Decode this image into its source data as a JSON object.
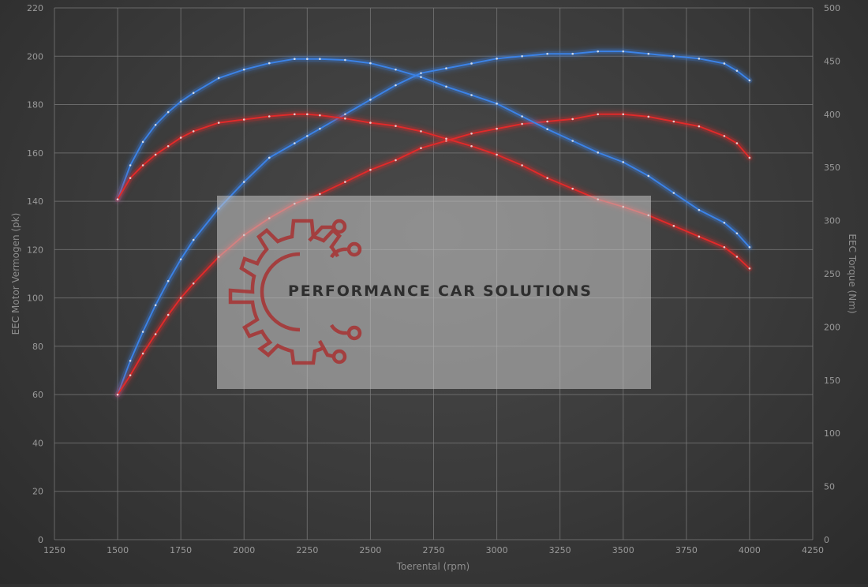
{
  "chart_data": {
    "type": "line",
    "title": "",
    "xlabel": "Toerental (rpm)",
    "ylabel_left": "EEC Motor Vermogen (pk)",
    "ylabel_right": "EEC Torque (Nm)",
    "xlim": [
      1250,
      4250
    ],
    "ylim_left": [
      0,
      220
    ],
    "ylim_right": [
      0,
      500
    ],
    "x_ticks": [
      "1250",
      "1500",
      "1750",
      "2000",
      "2250",
      "2500",
      "2750",
      "3000",
      "3250",
      "3500",
      "3750",
      "4000",
      "4250"
    ],
    "y_left_ticks": [
      "0",
      "20",
      "40",
      "60",
      "80",
      "100",
      "120",
      "140",
      "160",
      "180",
      "200",
      "220"
    ],
    "y_right_ticks": [
      "0",
      "50",
      "100",
      "150",
      "200",
      "250",
      "300",
      "350",
      "400",
      "450",
      "500"
    ],
    "grid": true,
    "series": [
      {
        "color": "#3b82e6",
        "axis": "left",
        "x": [
          1500,
          1550,
          1600,
          1650,
          1700,
          1750,
          1800,
          1900,
          2000,
          2100,
          2200,
          2250,
          2300,
          2400,
          2500,
          2600,
          2700,
          2800,
          2900,
          3000,
          3100,
          3200,
          3300,
          3400,
          3500,
          3600,
          3700,
          3800,
          3900,
          3950,
          4000
        ],
        "values": [
          60,
          74,
          86,
          97,
          107,
          116,
          124,
          137,
          148,
          158,
          164,
          167,
          170,
          176,
          182,
          188,
          193,
          195,
          197,
          199,
          200,
          201,
          201,
          202,
          202,
          201,
          200,
          199,
          197,
          194,
          190
        ]
      },
      {
        "color": "#e02a2a",
        "axis": "left",
        "x": [
          1500,
          1550,
          1600,
          1650,
          1700,
          1750,
          1800,
          1900,
          2000,
          2100,
          2200,
          2250,
          2300,
          2400,
          2500,
          2600,
          2700,
          2800,
          2900,
          3000,
          3100,
          3200,
          3300,
          3400,
          3500,
          3600,
          3700,
          3800,
          3900,
          3950,
          4000
        ],
        "values": [
          60,
          68,
          77,
          85,
          93,
          100,
          106,
          117,
          126,
          133,
          139,
          141,
          143,
          148,
          153,
          157,
          162,
          165,
          168,
          170,
          172,
          173,
          174,
          176,
          176,
          175,
          173,
          171,
          167,
          164,
          158
        ]
      },
      {
        "color": "#3b82e6",
        "axis": "right",
        "x": [
          1500,
          1550,
          1600,
          1650,
          1700,
          1750,
          1800,
          1900,
          2000,
          2100,
          2200,
          2250,
          2300,
          2400,
          2500,
          2600,
          2700,
          2800,
          2900,
          3000,
          3100,
          3200,
          3300,
          3400,
          3500,
          3600,
          3700,
          3800,
          3900,
          3950,
          4000
        ],
        "values": [
          320,
          352,
          374,
          390,
          402,
          412,
          420,
          434,
          442,
          448,
          452,
          452,
          452,
          451,
          448,
          442,
          435,
          426,
          418,
          410,
          398,
          386,
          375,
          364,
          355,
          342,
          326,
          310,
          298,
          288,
          275
        ]
      },
      {
        "color": "#e02a2a",
        "axis": "right",
        "x": [
          1500,
          1550,
          1600,
          1650,
          1700,
          1750,
          1800,
          1900,
          2000,
          2100,
          2200,
          2250,
          2300,
          2400,
          2500,
          2600,
          2700,
          2800,
          2900,
          3000,
          3100,
          3200,
          3300,
          3400,
          3500,
          3600,
          3700,
          3800,
          3900,
          3950,
          4000
        ],
        "values": [
          320,
          340,
          352,
          362,
          370,
          378,
          384,
          392,
          395,
          398,
          400,
          400,
          399,
          396,
          392,
          389,
          384,
          377,
          370,
          362,
          352,
          340,
          330,
          320,
          313,
          305,
          295,
          285,
          275,
          266,
          255
        ]
      }
    ]
  },
  "watermark": {
    "text": "PERFORMANCE CAR SOLUTIONS",
    "logo_icon": "gear-circuit-icon",
    "logo_color": "#a83232"
  }
}
